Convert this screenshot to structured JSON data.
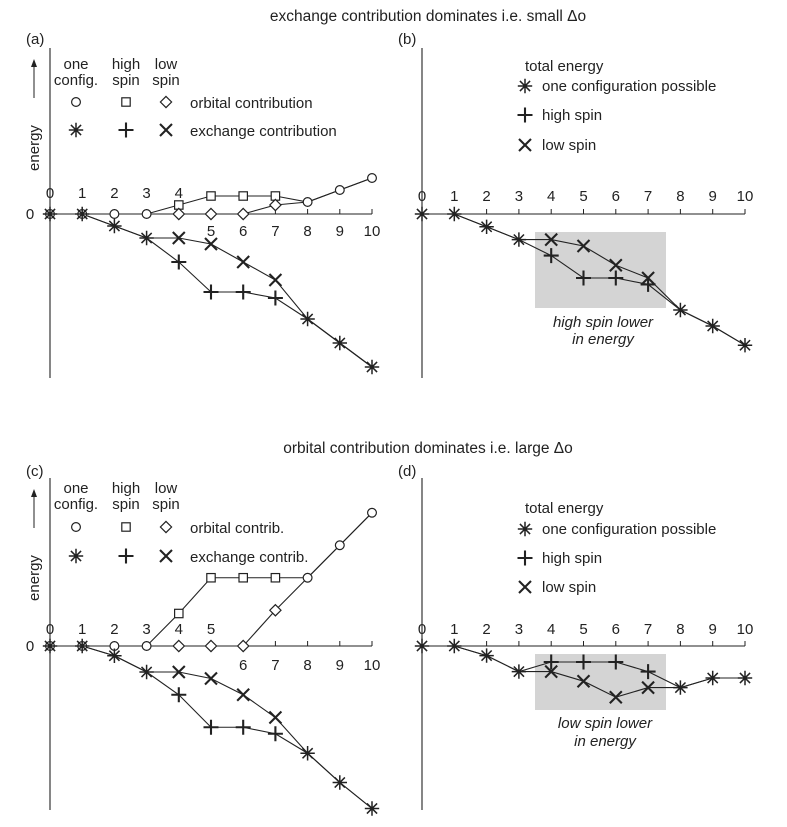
{
  "figure": {
    "top_heading": "exchange contribution dominates i.e. small Δo",
    "bottom_heading": "orbital contribution dominates i.e. large Δo",
    "y_axis_label": "energy",
    "zero_label": "0"
  },
  "colors": {
    "ink": "#222222",
    "shade": "#d4d4d4"
  },
  "chart_data": [
    {
      "id": "a",
      "panel_label": "(a)",
      "type": "line",
      "legend": {
        "columns": [
          "one\nconfig.",
          "high\nspin",
          "low\nspin"
        ],
        "rows": [
          {
            "label": "orbital contribution",
            "markers": [
              "circle",
              "square",
              "diamond"
            ]
          },
          {
            "label": "exchange contribution",
            "markers": [
              "asterisk",
              "plus",
              "cross"
            ]
          }
        ]
      },
      "x": [
        0,
        1,
        2,
        3,
        4,
        5,
        6,
        7,
        8,
        9,
        10
      ],
      "x_tick_labels": [
        "0",
        "1",
        "2",
        "3",
        "4",
        "5",
        "6",
        "7",
        "8",
        "9",
        "10"
      ],
      "series": [
        {
          "marker": "circle",
          "points": [
            [
              0,
              0
            ],
            [
              1,
              0
            ],
            [
              2,
              0
            ],
            [
              3,
              0
            ],
            [
              8,
              0.4
            ],
            [
              9,
              0.8
            ],
            [
              10,
              1.2
            ]
          ]
        },
        {
          "marker": "square",
          "points": [
            [
              4,
              0.3
            ],
            [
              5,
              0.6
            ],
            [
              6,
              0.6
            ],
            [
              7,
              0.6
            ]
          ]
        },
        {
          "marker": "diamond",
          "points": [
            [
              4,
              0
            ],
            [
              5,
              0
            ],
            [
              6,
              0
            ],
            [
              7,
              0.3
            ]
          ]
        },
        {
          "marker": "asterisk",
          "points": [
            [
              0,
              0
            ],
            [
              1,
              0
            ],
            [
              2,
              -0.4
            ],
            [
              3,
              -0.8
            ],
            [
              8,
              -3.5
            ],
            [
              9,
              -4.3
            ],
            [
              10,
              -5.1
            ]
          ]
        },
        {
          "marker": "plus",
          "points": [
            [
              4,
              -1.6
            ],
            [
              5,
              -2.6
            ],
            [
              6,
              -2.6
            ],
            [
              7,
              -2.8
            ]
          ]
        },
        {
          "marker": "cross",
          "points": [
            [
              4,
              -0.8
            ],
            [
              5,
              -1.0
            ],
            [
              6,
              -1.6
            ],
            [
              7,
              -2.2
            ]
          ]
        }
      ],
      "ylim": [
        -5.5,
        1.6
      ]
    },
    {
      "id": "b",
      "panel_label": "(b)",
      "type": "line",
      "legend_title": "total energy",
      "legend": [
        {
          "marker": "asterisk",
          "label": "one configuration possible"
        },
        {
          "marker": "plus",
          "label": "high spin"
        },
        {
          "marker": "cross",
          "label": "low spin"
        }
      ],
      "x": [
        0,
        1,
        2,
        3,
        4,
        5,
        6,
        7,
        8,
        9,
        10
      ],
      "x_tick_labels": [
        "0",
        "1",
        "2",
        "3",
        "4",
        "5",
        "6",
        "7",
        "8",
        "9",
        "10"
      ],
      "series": [
        {
          "marker": "asterisk",
          "points": [
            [
              0,
              0
            ],
            [
              1,
              0
            ],
            [
              2,
              -0.4
            ],
            [
              3,
              -0.8
            ],
            [
              8,
              -3.0
            ],
            [
              9,
              -3.5
            ],
            [
              10,
              -4.1
            ]
          ]
        },
        {
          "marker": "plus",
          "points": [
            [
              4,
              -1.3
            ],
            [
              5,
              -2.0
            ],
            [
              6,
              -2.0
            ],
            [
              7,
              -2.2
            ]
          ]
        },
        {
          "marker": "cross",
          "points": [
            [
              4,
              -0.8
            ],
            [
              5,
              -1.0
            ],
            [
              6,
              -1.6
            ],
            [
              7,
              -2.0
            ]
          ]
        }
      ],
      "annotation": "high spin lower\nin energy",
      "highlight_x_range": [
        3.5,
        7.5
      ],
      "ylim": [
        -4.6,
        1.0
      ]
    },
    {
      "id": "c",
      "panel_label": "(c)",
      "type": "line",
      "legend": {
        "columns": [
          "one\nconfig.",
          "high\nspin",
          "low\nspin"
        ],
        "rows": [
          {
            "label": "orbital contrib.",
            "markers": [
              "circle",
              "square",
              "diamond"
            ]
          },
          {
            "label": "exchange contrib.",
            "markers": [
              "asterisk",
              "plus",
              "cross"
            ]
          }
        ]
      },
      "x": [
        0,
        1,
        2,
        3,
        4,
        5,
        6,
        7,
        8,
        9,
        10
      ],
      "x_tick_labels": [
        "0",
        "1",
        "2",
        "3",
        "4",
        "5",
        "6",
        "7",
        "8",
        "9",
        "10"
      ],
      "series": [
        {
          "marker": "circle",
          "points": [
            [
              0,
              0
            ],
            [
              1,
              0
            ],
            [
              2,
              0
            ],
            [
              3,
              0
            ],
            [
              8,
              2.1
            ],
            [
              9,
              3.1
            ],
            [
              10,
              4.1
            ]
          ]
        },
        {
          "marker": "square",
          "points": [
            [
              4,
              1.0
            ],
            [
              5,
              2.1
            ],
            [
              6,
              2.1
            ],
            [
              7,
              2.1
            ]
          ]
        },
        {
          "marker": "diamond",
          "points": [
            [
              4,
              0
            ],
            [
              5,
              0
            ],
            [
              6,
              0
            ],
            [
              7,
              1.1
            ]
          ]
        },
        {
          "marker": "asterisk",
          "points": [
            [
              0,
              0
            ],
            [
              1,
              0
            ],
            [
              2,
              -0.3
            ],
            [
              3,
              -0.8
            ],
            [
              8,
              -3.3
            ],
            [
              9,
              -4.2
            ],
            [
              10,
              -5.0
            ]
          ]
        },
        {
          "marker": "plus",
          "points": [
            [
              4,
              -1.5
            ],
            [
              5,
              -2.5
            ],
            [
              6,
              -2.5
            ],
            [
              7,
              -2.7
            ]
          ]
        },
        {
          "marker": "cross",
          "points": [
            [
              4,
              -0.8
            ],
            [
              5,
              -1.0
            ],
            [
              6,
              -1.5
            ],
            [
              7,
              -2.2
            ]
          ]
        }
      ],
      "ylim": [
        -5.4,
        4.6
      ]
    },
    {
      "id": "d",
      "panel_label": "(d)",
      "type": "line",
      "legend_title": "total energy",
      "legend": [
        {
          "marker": "asterisk",
          "label": "one configuration possible"
        },
        {
          "marker": "plus",
          "label": "high spin"
        },
        {
          "marker": "cross",
          "label": "low spin"
        }
      ],
      "x": [
        0,
        1,
        2,
        3,
        4,
        5,
        6,
        7,
        8,
        9,
        10
      ],
      "x_tick_labels": [
        "0",
        "1",
        "2",
        "3",
        "4",
        "5",
        "6",
        "7",
        "8",
        "9",
        "10"
      ],
      "series": [
        {
          "marker": "asterisk",
          "points": [
            [
              0,
              0
            ],
            [
              1,
              0
            ],
            [
              2,
              -0.3
            ],
            [
              3,
              -0.8
            ],
            [
              8,
              -1.3
            ],
            [
              9,
              -1.0
            ],
            [
              10,
              -1.0
            ]
          ]
        },
        {
          "marker": "plus",
          "points": [
            [
              4,
              -0.5
            ],
            [
              5,
              -0.5
            ],
            [
              6,
              -0.5
            ],
            [
              7,
              -0.8
            ]
          ]
        },
        {
          "marker": "cross",
          "points": [
            [
              4,
              -0.8
            ],
            [
              5,
              -1.1
            ],
            [
              6,
              -1.6
            ],
            [
              7,
              -1.3
            ]
          ]
        }
      ],
      "annotation": "low spin lower\nin energy",
      "highlight_x_range": [
        3.5,
        7.5
      ],
      "ylim": [
        -2.0,
        0.6
      ]
    }
  ]
}
